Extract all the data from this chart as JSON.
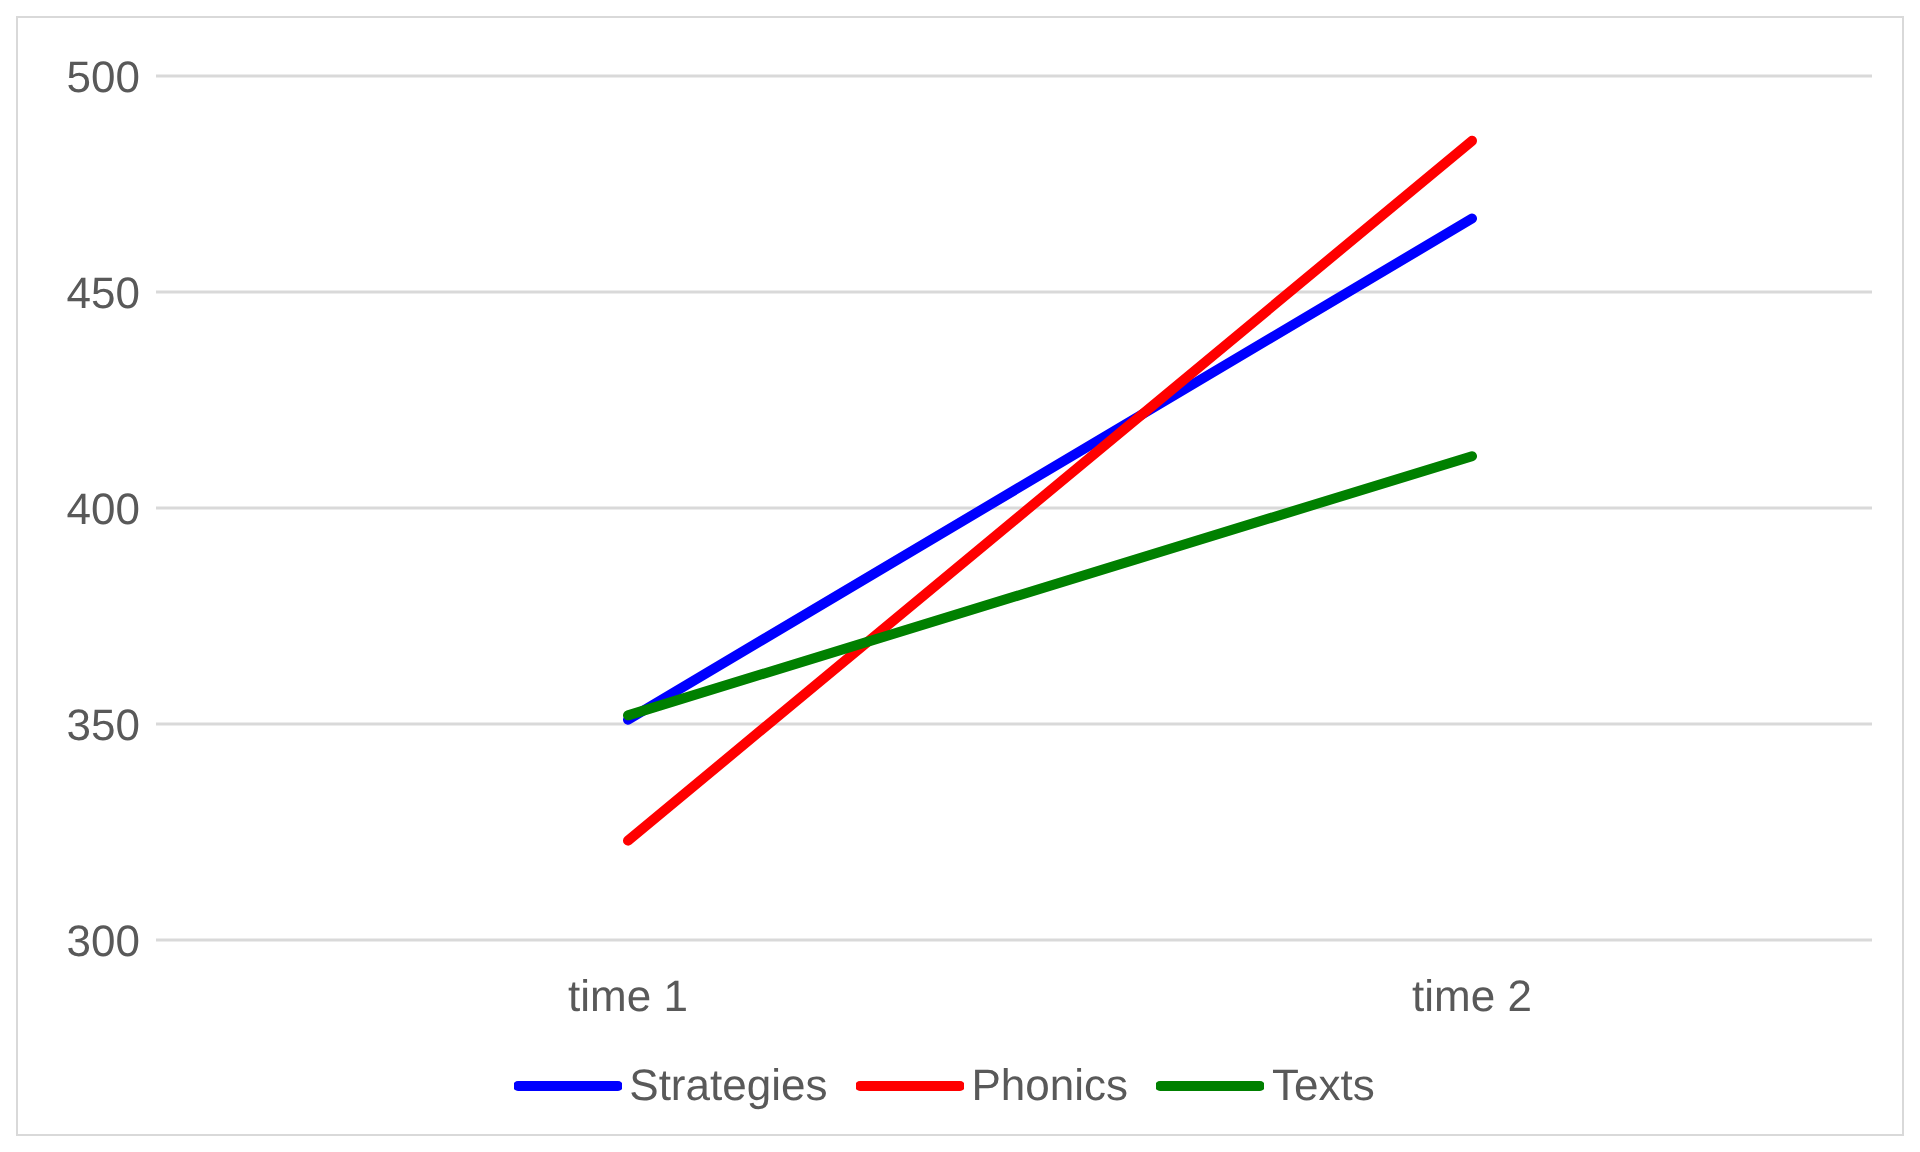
{
  "chart_data": {
    "type": "line",
    "categories": [
      "time 1",
      "time 2"
    ],
    "series": [
      {
        "name": "Strategies",
        "color": "#0000ff",
        "values": [
          351,
          467
        ]
      },
      {
        "name": "Phonics",
        "color": "#ff0000",
        "values": [
          323,
          485
        ]
      },
      {
        "name": "Texts",
        "color": "#008000",
        "values": [
          352,
          412
        ]
      }
    ],
    "ylim": [
      300,
      500
    ],
    "yticks": [
      300,
      350,
      400,
      450,
      500
    ],
    "grid": "y",
    "legend": "bottom",
    "marker": "none"
  }
}
